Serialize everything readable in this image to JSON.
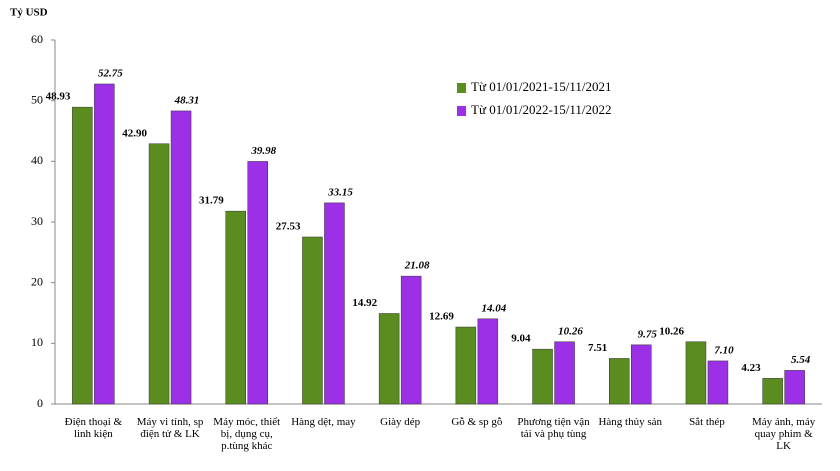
{
  "chart_data": {
    "type": "bar",
    "y_label": "Tỷ USD",
    "categories": [
      "Điện thoại & linh kiện",
      "Máy vi tính, sp điện tử & LK",
      "Máy móc, thiết bị, dụng cụ, p.tùng khác",
      "Hàng dệt, may",
      "Giày dép",
      "Gỗ & sp gỗ",
      "Phương tiện vận tải và phụ tùng",
      "Hàng thủy sản",
      "Sắt thép",
      "Máy ảnh, máy quay phim & LK"
    ],
    "series": [
      {
        "name": "Từ 01/01/2021-15/11/2021",
        "color": "#5b8c1f",
        "values": [
          48.93,
          42.9,
          31.79,
          27.53,
          14.92,
          12.69,
          9.04,
          7.51,
          10.26,
          4.23
        ],
        "value_labels": [
          "48.93",
          "42.90",
          "31.79",
          "27.53",
          "14.92",
          "12.69",
          "9.04",
          "7.51",
          "10.26",
          "4.23"
        ]
      },
      {
        "name": "Từ 01/01/2022-15/11/2022",
        "color": "#9b30e6",
        "values": [
          52.75,
          48.31,
          39.98,
          33.15,
          21.08,
          14.04,
          10.26,
          9.75,
          7.1,
          5.54
        ],
        "value_labels": [
          "52.75",
          "48.31",
          "39.98",
          "33.15",
          "21.08",
          "14.04",
          "10.26",
          "9.75",
          "7.10",
          "5.54"
        ]
      }
    ],
    "ylim": [
      0,
      60
    ],
    "yticks": [
      0,
      10,
      20,
      30,
      40,
      50,
      60
    ],
    "grid": false,
    "legend": "top-right"
  }
}
